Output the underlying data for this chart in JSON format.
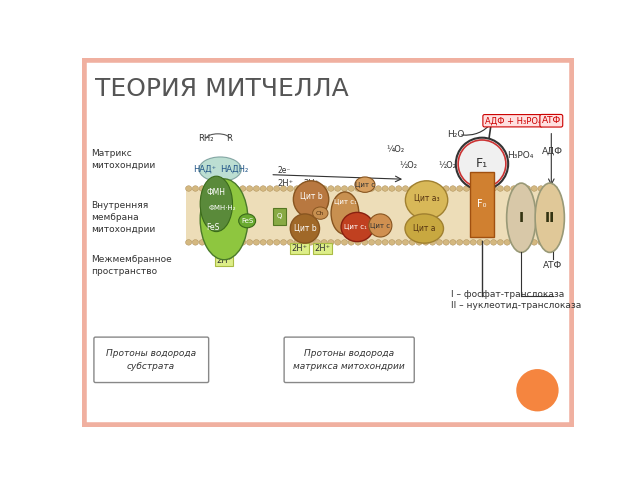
{
  "title": "ТЕОРИЯ МИТЧЕЛЛА",
  "bg_color": "#ffffff",
  "border_color": "#f0b0a0",
  "title_color": "#555555",
  "title_fontsize": 18,
  "label_matrix": "Матрикс\nмитохондрии",
  "label_inner_membrane": "Внутренняя\nмембрана\nмитохондрии",
  "label_inter_membrane": "Межмембранное\nпространство",
  "label_I": "I – фосфат-транслоказа",
  "label_II": "II – нуклеотид-транслоказа",
  "label_box1": "Протоны водорода\nсубстрата",
  "label_box2": "Протоны водорода\nматрикса митохондрии",
  "orange_color": "#f5853f",
  "green_light": "#8ec63f",
  "green_dark": "#5a8a3a",
  "green_mid": "#6aaa30",
  "brown1": "#c8834a",
  "brown2": "#a86830",
  "brown3": "#c07830",
  "brown_red": "#c04020",
  "brown_yellow": "#d8a840",
  "tan_light": "#ddc898",
  "tan_mid": "#c8b080",
  "mem_color": "#e0c898",
  "mem_edge": "#b89060"
}
